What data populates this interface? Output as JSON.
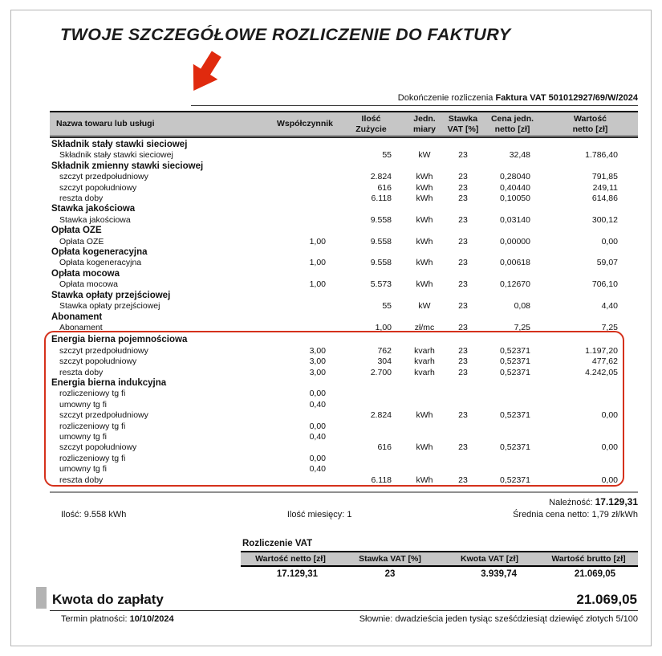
{
  "title": "TWOJE SZCZEGÓŁOWE ROZLICZENIE DO FAKTURY",
  "subtitle": {
    "prefix": "Dokończenie rozliczenia ",
    "invoice": "Faktura VAT 501012927/69/W/2024"
  },
  "table": {
    "headers": [
      [
        "Nazwa towaru lub usługi",
        ""
      ],
      [
        "Współczynnik",
        ""
      ],
      [
        "Ilość",
        "Zużycie"
      ],
      [
        "Jedn.",
        "miary"
      ],
      [
        "Stawka",
        "VAT [%]"
      ],
      [
        "Cena jedn.",
        "netto [zł]"
      ],
      [
        "Wartość",
        "netto [zł]"
      ]
    ],
    "rows": [
      [
        "section",
        "Składnik stały stawki sieciowej"
      ],
      [
        "item",
        "Składnik stały stawki sieciowej",
        "",
        "55",
        "kW",
        "23",
        "32,48",
        "1.786,40"
      ],
      [
        "section",
        "Składnik zmienny stawki sieciowej"
      ],
      [
        "item",
        "szczyt przedpołudniowy",
        "",
        "2.824",
        "kWh",
        "23",
        "0,28040",
        "791,85"
      ],
      [
        "item",
        "szczyt popołudniowy",
        "",
        "616",
        "kWh",
        "23",
        "0,40440",
        "249,11"
      ],
      [
        "item",
        "reszta doby",
        "",
        "6.118",
        "kWh",
        "23",
        "0,10050",
        "614,86"
      ],
      [
        "section",
        "Stawka jakościowa"
      ],
      [
        "item",
        "Stawka jakościowa",
        "",
        "9.558",
        "kWh",
        "23",
        "0,03140",
        "300,12"
      ],
      [
        "section",
        "Opłata OZE"
      ],
      [
        "item",
        "Opłata OZE",
        "1,00",
        "9.558",
        "kWh",
        "23",
        "0,00000",
        "0,00"
      ],
      [
        "section",
        "Opłata kogeneracyjna"
      ],
      [
        "item",
        "Opłata kogeneracyjna",
        "1,00",
        "9.558",
        "kWh",
        "23",
        "0,00618",
        "59,07"
      ],
      [
        "section",
        "Opłata mocowa"
      ],
      [
        "item",
        "Opłata mocowa",
        "1,00",
        "5.573",
        "kWh",
        "23",
        "0,12670",
        "706,10"
      ],
      [
        "section",
        "Stawka opłaty przejściowej"
      ],
      [
        "item",
        "Stawka opłaty przejściowej",
        "",
        "55",
        "kW",
        "23",
        "0,08",
        "4,40"
      ],
      [
        "section",
        "Abonament"
      ],
      [
        "item",
        "Abonament",
        "",
        "1,00",
        "zł/mc",
        "23",
        "7,25",
        "7,25"
      ]
    ],
    "boxed_rows": [
      [
        "section",
        "Energia bierna pojemnościowa"
      ],
      [
        "item",
        "szczyt przedpołudniowy",
        "3,00",
        "762",
        "kvarh",
        "23",
        "0,52371",
        "1.197,20"
      ],
      [
        "item",
        "szczyt popołudniowy",
        "3,00",
        "304",
        "kvarh",
        "23",
        "0,52371",
        "477,62"
      ],
      [
        "item",
        "reszta doby",
        "3,00",
        "2.700",
        "kvarh",
        "23",
        "0,52371",
        "4.242,05"
      ],
      [
        "section",
        "Energia bierna indukcyjna"
      ],
      [
        "item",
        "rozliczeniowy tg fi",
        "0,00",
        "",
        "",
        "",
        "",
        ""
      ],
      [
        "item",
        "umowny tg fi",
        "0,40",
        "",
        "",
        "",
        "",
        ""
      ],
      [
        "item",
        "szczyt przedpołudniowy",
        "",
        "2.824",
        "kWh",
        "23",
        "0,52371",
        "0,00"
      ],
      [
        "item",
        "rozliczeniowy tg fi",
        "0,00",
        "",
        "",
        "",
        "",
        ""
      ],
      [
        "item",
        "umowny tg fi",
        "0,40",
        "",
        "",
        "",
        "",
        ""
      ],
      [
        "item",
        "szczyt popołudniowy",
        "",
        "616",
        "kWh",
        "23",
        "0,52371",
        "0,00"
      ],
      [
        "item",
        "rozliczeniowy tg fi",
        "0,00",
        "",
        "",
        "",
        "",
        ""
      ],
      [
        "item",
        "umowny tg fi",
        "0,40",
        "",
        "",
        "",
        "",
        ""
      ],
      [
        "item",
        "reszta doby",
        "",
        "6.118",
        "kWh",
        "23",
        "0,52371",
        "0,00"
      ]
    ]
  },
  "summary": {
    "naleznosc_label": "Należność: ",
    "naleznosc_value": "17.129,31",
    "ilosc": "Ilość: 9.558 kWh",
    "ilosc_miesiecy": "Ilość miesięcy: 1",
    "srednia": "Średnia cena netto: 1,79 zł/kWh"
  },
  "vat": {
    "title": "Rozliczenie VAT",
    "headers": [
      "Wartość netto [zł]",
      "Stawka VAT [%]",
      "Kwota VAT [zł]",
      "Wartość brutto [zł]"
    ],
    "values": [
      "17.129,31",
      "23",
      "3.939,74",
      "21.069,05"
    ]
  },
  "footer": {
    "kwota_label": "Kwota do zapłaty",
    "kwota_value": "21.069,05",
    "termin_label": "Termin płatności: ",
    "termin_value": "10/10/2024",
    "slownie": "Słownie: dwadzieścia jeden tysiąc sześćdziesiąt dziewięć złotych 5/100"
  },
  "colors": {
    "accent_red": "#d5311c",
    "arrow_red": "#e02a0e",
    "header_gray": "#c6c6c6"
  }
}
